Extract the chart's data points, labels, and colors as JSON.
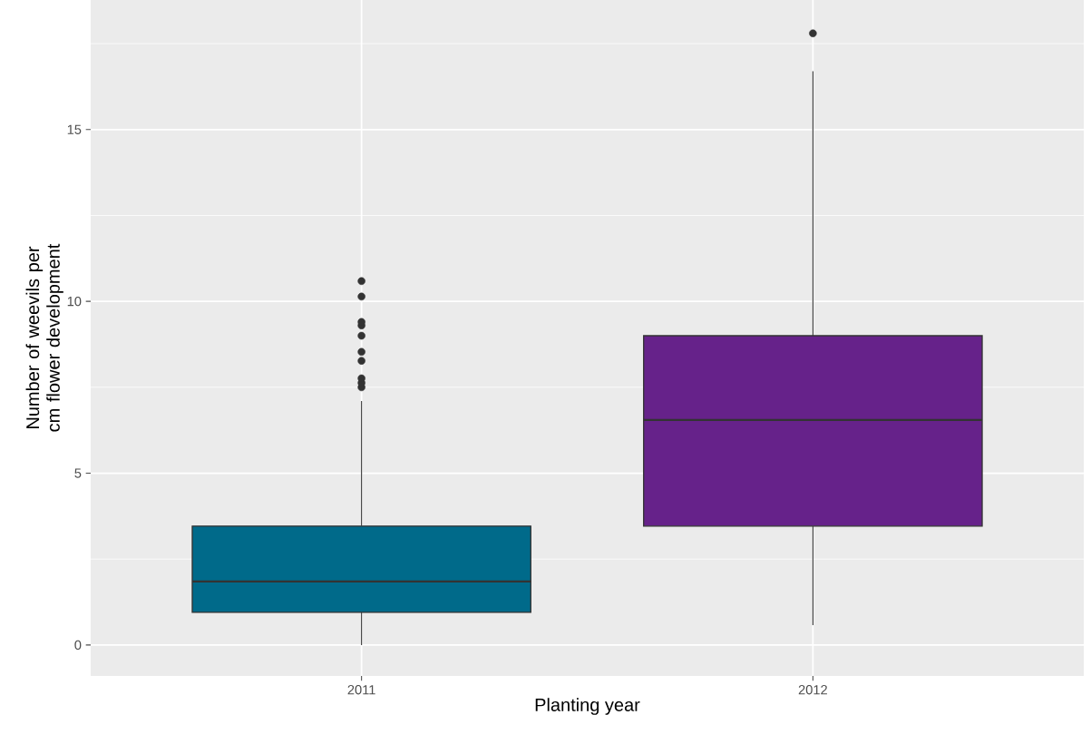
{
  "chart_data": {
    "type": "box",
    "xlabel": "Planting year",
    "ylabel": "Number of weevils per cm flower development",
    "categories": [
      "2011",
      "2012"
    ],
    "colors": [
      "#006a8a",
      "#66228a"
    ],
    "boxes": [
      {
        "low": 0,
        "q1": 0.95,
        "median": 1.85,
        "q3": 3.46,
        "high": 7.1,
        "outliers": [
          7.5,
          7.63,
          7.76,
          8.27,
          8.53,
          9.0,
          9.3,
          9.4,
          10.14,
          10.59
        ]
      },
      {
        "low": 0.58,
        "q1": 3.46,
        "median": 6.55,
        "q3": 9.0,
        "high": 16.7,
        "outliers": [
          17.8
        ]
      }
    ],
    "ylim": [
      -0.9,
      18.77
    ],
    "yticks": [
      0,
      5,
      10,
      15
    ],
    "grid": true
  }
}
